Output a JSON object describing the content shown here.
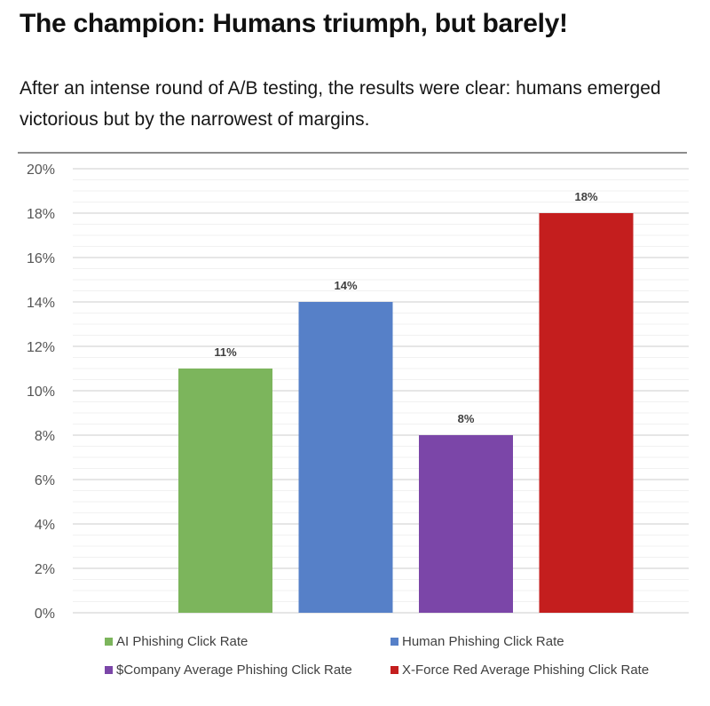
{
  "article": {
    "headline": "The champion: Humans triumph, but barely!",
    "subtitle": "After an intense round of A/B testing, the results were clear: humans emerged victorious but by the narrowest of margins."
  },
  "chart_data": {
    "type": "bar",
    "title": "",
    "xlabel": "",
    "ylabel": "",
    "ylim": [
      0,
      20
    ],
    "yticks": [
      "0%",
      "2%",
      "4%",
      "6%",
      "8%",
      "10%",
      "12%",
      "14%",
      "16%",
      "18%",
      "20%"
    ],
    "grid": true,
    "legend_position": "bottom",
    "series": [
      {
        "name": "AI Phishing Click Rate",
        "value": 11,
        "label": "11%",
        "color": "#7cb55c"
      },
      {
        "name": "Human Phishing Click Rate",
        "value": 14,
        "label": "14%",
        "color": "#5680c8"
      },
      {
        "name": "$Company Average Phishing Click Rate",
        "value": 8,
        "label": "8%",
        "color": "#7b46a8"
      },
      {
        "name": "X-Force Red Average Phishing Click Rate",
        "value": 18,
        "label": "18%",
        "color": "#c41e1e"
      }
    ]
  }
}
